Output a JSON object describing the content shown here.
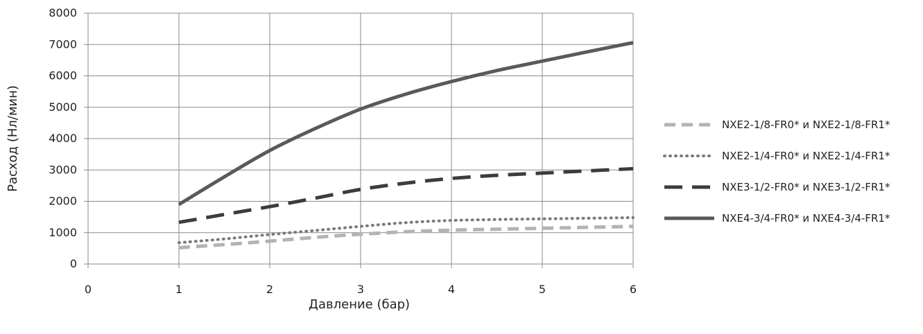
{
  "chart_data": {
    "type": "line",
    "title": "",
    "xlabel": "Давление (бар)",
    "ylabel": "Расход (Нл/мин)",
    "xlim": [
      0,
      6
    ],
    "ylim": [
      0,
      8000
    ],
    "x_ticks": [
      "0",
      "1",
      "2",
      "3",
      "4",
      "5",
      "6"
    ],
    "y_ticks": [
      "0",
      "1000",
      "2000",
      "3000",
      "4000",
      "5000",
      "6000",
      "7000",
      "8000"
    ],
    "grid": true,
    "legend_position": "right",
    "series": [
      {
        "name": "NXE2-1/8-FR0* и NXE2-1/8-FR1*",
        "style": "dashed-light",
        "color": "#b3b3b3",
        "x": [
          1,
          1.5,
          2,
          2.5,
          3,
          3.5,
          4,
          4.5,
          5,
          5.5,
          6
        ],
        "y": [
          520,
          620,
          730,
          850,
          950,
          1030,
          1080,
          1110,
          1140,
          1170,
          1200
        ]
      },
      {
        "name": "NXE2-1/4-FR0* и NXE2-1/4-FR1*",
        "style": "dotted",
        "color": "#7a7a7a",
        "x": [
          1,
          1.5,
          2,
          2.5,
          3,
          3.5,
          4,
          4.5,
          5,
          5.5,
          6
        ],
        "y": [
          680,
          800,
          940,
          1070,
          1200,
          1320,
          1390,
          1420,
          1440,
          1460,
          1480
        ]
      },
      {
        "name": "NXE3-1/2-FR0* и NXE3-1/2-FR1*",
        "style": "long-dashed",
        "color": "#3c3c3c",
        "x": [
          1,
          1.5,
          2,
          2.5,
          3,
          3.5,
          4,
          4.5,
          5,
          5.5,
          6
        ],
        "y": [
          1330,
          1580,
          1830,
          2100,
          2380,
          2580,
          2730,
          2830,
          2900,
          2970,
          3040
        ]
      },
      {
        "name": "NXE4-3/4-FR0* и NXE4-3/4-FR1*",
        "style": "solid",
        "color": "#5a5a5a",
        "x": [
          1,
          1.5,
          2,
          2.5,
          3,
          3.5,
          4,
          4.5,
          5,
          5.5,
          6
        ],
        "y": [
          1900,
          2780,
          3620,
          4320,
          4940,
          5420,
          5820,
          6170,
          6470,
          6770,
          7060
        ]
      }
    ]
  }
}
